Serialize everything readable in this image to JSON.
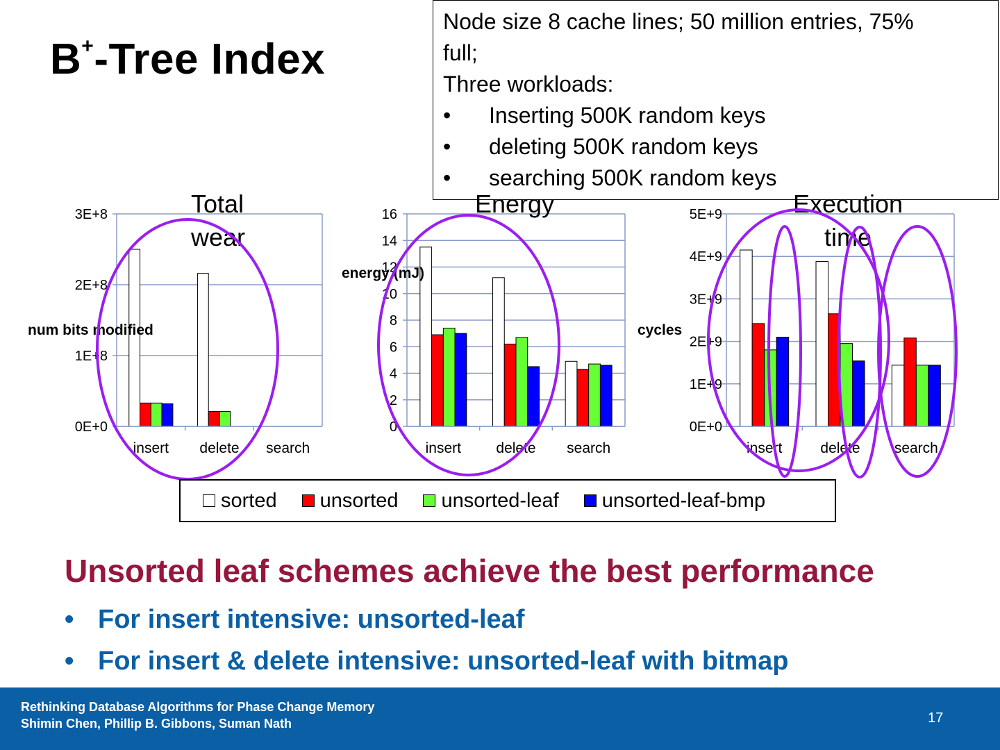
{
  "slide": {
    "title_main": "B",
    "title_sup": "+",
    "title_rest": "-Tree Index",
    "note": {
      "line1": "Node size 8 cache lines; 50 million entries, 75%",
      "line2": "full;",
      "line3": "Three workloads:",
      "bullets": [
        "Inserting 500K random keys",
        "deleting 500K random keys",
        "searching 500K random keys"
      ],
      "bullet_glyph": "•"
    },
    "headline": "Unsorted leaf schemes achieve the best performance",
    "bullets": [
      "For insert intensive: unsorted-leaf",
      "For insert & delete intensive: unsorted-leaf with bitmap"
    ],
    "bullet_glyph": "•",
    "footer": {
      "line1": "Rethinking Database Algorithms for Phase Change Memory",
      "line2": "Shimin Chen, Phillip B. Gibbons, Suman Nath",
      "page": "17"
    },
    "legend": [
      "sorted",
      "unsorted",
      "unsorted-leaf",
      "unsorted-leaf-bmp"
    ],
    "colors": {
      "sorted": "#ffffff",
      "unsorted": "#ff0000",
      "unsorted-leaf": "#66ff33",
      "unsorted-leaf-bmp": "#0000ff",
      "headline": "#96163c",
      "bullets": "#0b5fa5",
      "footer": "#0b5fa5",
      "highlight": "#9b1ef0",
      "grid": "#8a9bc7"
    }
  },
  "chart_data": [
    {
      "type": "bar",
      "title_line1": "Total",
      "title_line2": "wear",
      "ylabel": "num bits modified",
      "categories": [
        "insert",
        "delete",
        "search"
      ],
      "ylim": [
        0,
        300000000
      ],
      "yticks": [
        0,
        100000000,
        200000000,
        300000000
      ],
      "ytick_labels": [
        "0E+0",
        "1E+8",
        "2E+8",
        "3E+8"
      ],
      "series": [
        {
          "name": "sorted",
          "values": [
            250000000,
            216000000,
            0
          ]
        },
        {
          "name": "unsorted",
          "values": [
            33000000,
            21000000,
            0
          ]
        },
        {
          "name": "unsorted-leaf",
          "values": [
            33000000,
            21000000,
            0
          ]
        },
        {
          "name": "unsorted-leaf-bmp",
          "values": [
            32000000,
            0,
            0
          ]
        }
      ]
    },
    {
      "type": "bar",
      "title_line1": "Energy",
      "title_line2": "",
      "ylabel": "energy (mJ)",
      "categories": [
        "insert",
        "delete",
        "search"
      ],
      "ylim": [
        0,
        16
      ],
      "yticks": [
        0,
        2,
        4,
        6,
        8,
        10,
        12,
        14,
        16
      ],
      "ytick_labels": [
        "0",
        "2",
        "4",
        "6",
        "8",
        "10",
        "12",
        "14",
        "16"
      ],
      "series": [
        {
          "name": "sorted",
          "values": [
            13.5,
            11.2,
            4.9
          ]
        },
        {
          "name": "unsorted",
          "values": [
            6.9,
            6.2,
            4.3
          ]
        },
        {
          "name": "unsorted-leaf",
          "values": [
            7.4,
            6.7,
            4.7
          ]
        },
        {
          "name": "unsorted-leaf-bmp",
          "values": [
            7.0,
            4.5,
            4.6
          ]
        }
      ]
    },
    {
      "type": "bar",
      "title_line1": "Execution",
      "title_line2": "time",
      "ylabel": "cycles",
      "categories": [
        "insert",
        "delete",
        "search"
      ],
      "ylim": [
        0,
        5000000000
      ],
      "yticks": [
        0,
        1000000000,
        2000000000,
        3000000000,
        4000000000,
        5000000000
      ],
      "ytick_labels": [
        "0E+0",
        "1E+9",
        "2E+9",
        "3E+9",
        "4E+9",
        "5E+9"
      ],
      "series": [
        {
          "name": "sorted",
          "values": [
            4150000000,
            3880000000,
            1440000000
          ]
        },
        {
          "name": "unsorted",
          "values": [
            2420000000,
            2650000000,
            2080000000
          ]
        },
        {
          "name": "unsorted-leaf",
          "values": [
            1800000000,
            1950000000,
            1440000000
          ]
        },
        {
          "name": "unsorted-leaf-bmp",
          "values": [
            2100000000,
            1540000000,
            1440000000
          ]
        }
      ]
    }
  ]
}
